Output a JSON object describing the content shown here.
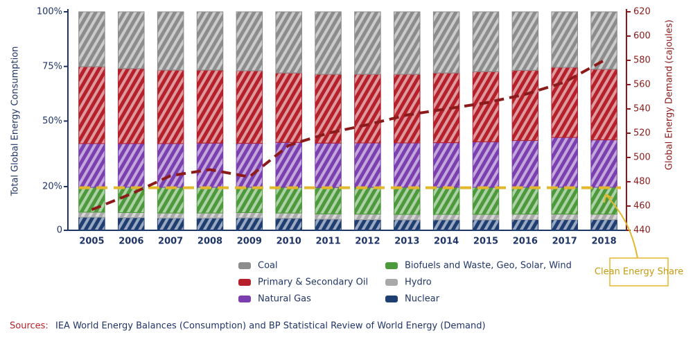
{
  "chart_data": {
    "type": "stacked-bar-line",
    "categories": [
      "2005",
      "2006",
      "2007",
      "2008",
      "2009",
      "2010",
      "2011",
      "2012",
      "2013",
      "2014",
      "2015",
      "2016",
      "2017",
      "2018"
    ],
    "series": [
      {
        "name": "Nuclear",
        "color": "#1f3f73",
        "values": [
          6,
          5.8,
          5.6,
          5.6,
          5.7,
          5.5,
          5.1,
          4.9,
          4.8,
          4.8,
          4.8,
          4.9,
          4.9,
          4.9
        ]
      },
      {
        "name": "Hydro",
        "color": "#a9a9a9",
        "values": [
          2.3,
          2.3,
          2.3,
          2.3,
          2.4,
          2.4,
          2.4,
          2.5,
          2.5,
          2.5,
          2.5,
          2.5,
          2.5,
          2.5
        ]
      },
      {
        "name": "Biofuels and Waste, Geo, Solar, Wind",
        "color": "#4c9a3c",
        "values": [
          11.4,
          11.6,
          11.8,
          11.8,
          11.6,
          11.8,
          12.1,
          12.3,
          12.4,
          12.4,
          12.4,
          12.3,
          12.3,
          12.3
        ]
      },
      {
        "name": "Natural Gas",
        "color": "#7b3fb0",
        "values": [
          20,
          20,
          20,
          20.2,
          20.1,
          20.5,
          20.3,
          20.3,
          20.3,
          20.4,
          20.8,
          21.4,
          22.8,
          21.7
        ]
      },
      {
        "name": "Primary & Secondary Oil",
        "color": "#b5202a",
        "values": [
          35.2,
          34.3,
          33.6,
          33.4,
          33.2,
          31.8,
          31.5,
          31.4,
          31.4,
          31.9,
          32.1,
          32.1,
          32.1,
          32.3
        ]
      },
      {
        "name": "Coal",
        "color": "#8c8c8c",
        "values": [
          25.1,
          26,
          26.7,
          26.7,
          27,
          28,
          28.6,
          28.6,
          28.6,
          28,
          27.4,
          26.8,
          25.4,
          26.3
        ]
      }
    ],
    "demand": {
      "color": "#8b1a1a",
      "axis": "y2",
      "values": [
        457,
        470,
        485,
        490,
        484,
        510,
        520,
        527,
        535,
        540,
        545,
        552,
        562,
        580
      ]
    },
    "ylabel": "Total Global Energy Consumption",
    "ylim": [
      0,
      100
    ],
    "yticks": [
      0,
      {
        "value": 20,
        "label": "20%"
      },
      {
        "value": 50,
        "label": "50%"
      },
      {
        "value": 75,
        "label": "75%"
      },
      {
        "value": 100,
        "label": "100%"
      }
    ],
    "y2label": "Global Energy Demand",
    "y2unit": "(cajoules)",
    "y2lim": [
      440,
      620
    ],
    "y2ticks": [
      440,
      460,
      480,
      500,
      520,
      540,
      560,
      580,
      600,
      620
    ],
    "annotation": {
      "text": "Clean Energy Share",
      "value": 19.5,
      "color": "#e2b72c"
    },
    "source_label": "Sources:",
    "source_text": "IEA World Energy Balances (Consumption) and BP Statistical Review of World Energy (Demand)"
  }
}
